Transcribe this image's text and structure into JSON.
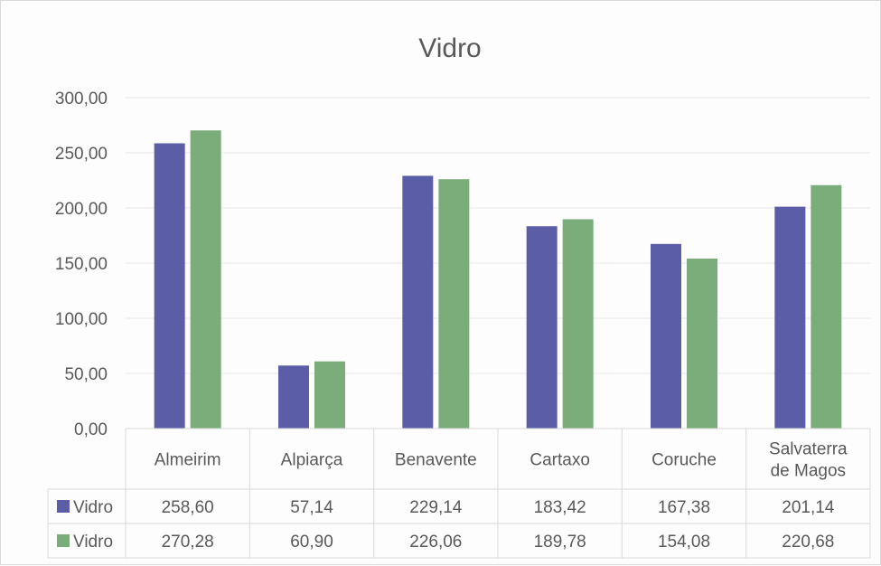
{
  "chart_data": {
    "type": "bar",
    "title": "Vidro",
    "categories": [
      [
        "Almeirim"
      ],
      [
        "Alpiarça"
      ],
      [
        "Benavente"
      ],
      [
        "Cartaxo"
      ],
      [
        "Coruche"
      ],
      [
        "Salvaterra",
        "de Magos"
      ]
    ],
    "series": [
      {
        "name": "Vidro",
        "color": "#5b5ea6",
        "values": [
          258.6,
          57.14,
          229.14,
          183.42,
          167.38,
          201.14
        ],
        "labels": [
          "258,60",
          "57,14",
          "229,14",
          "183,42",
          "167,38",
          "201,14"
        ]
      },
      {
        "name": "Vidro",
        "color": "#7aad7a",
        "values": [
          270.28,
          60.9,
          226.06,
          189.78,
          154.08,
          220.68
        ],
        "labels": [
          "270,28",
          "60,90",
          "226,06",
          "189,78",
          "154,08",
          "220,68"
        ]
      }
    ],
    "ylim": [
      0,
      300
    ],
    "yticks": [
      0,
      50,
      100,
      150,
      200,
      250,
      300
    ],
    "ytick_labels": [
      "0,00",
      "50,00",
      "100,00",
      "150,00",
      "200,00",
      "250,00",
      "300,00"
    ],
    "xlabel": "",
    "ylabel": "",
    "grid": true,
    "legend": "data-table"
  }
}
